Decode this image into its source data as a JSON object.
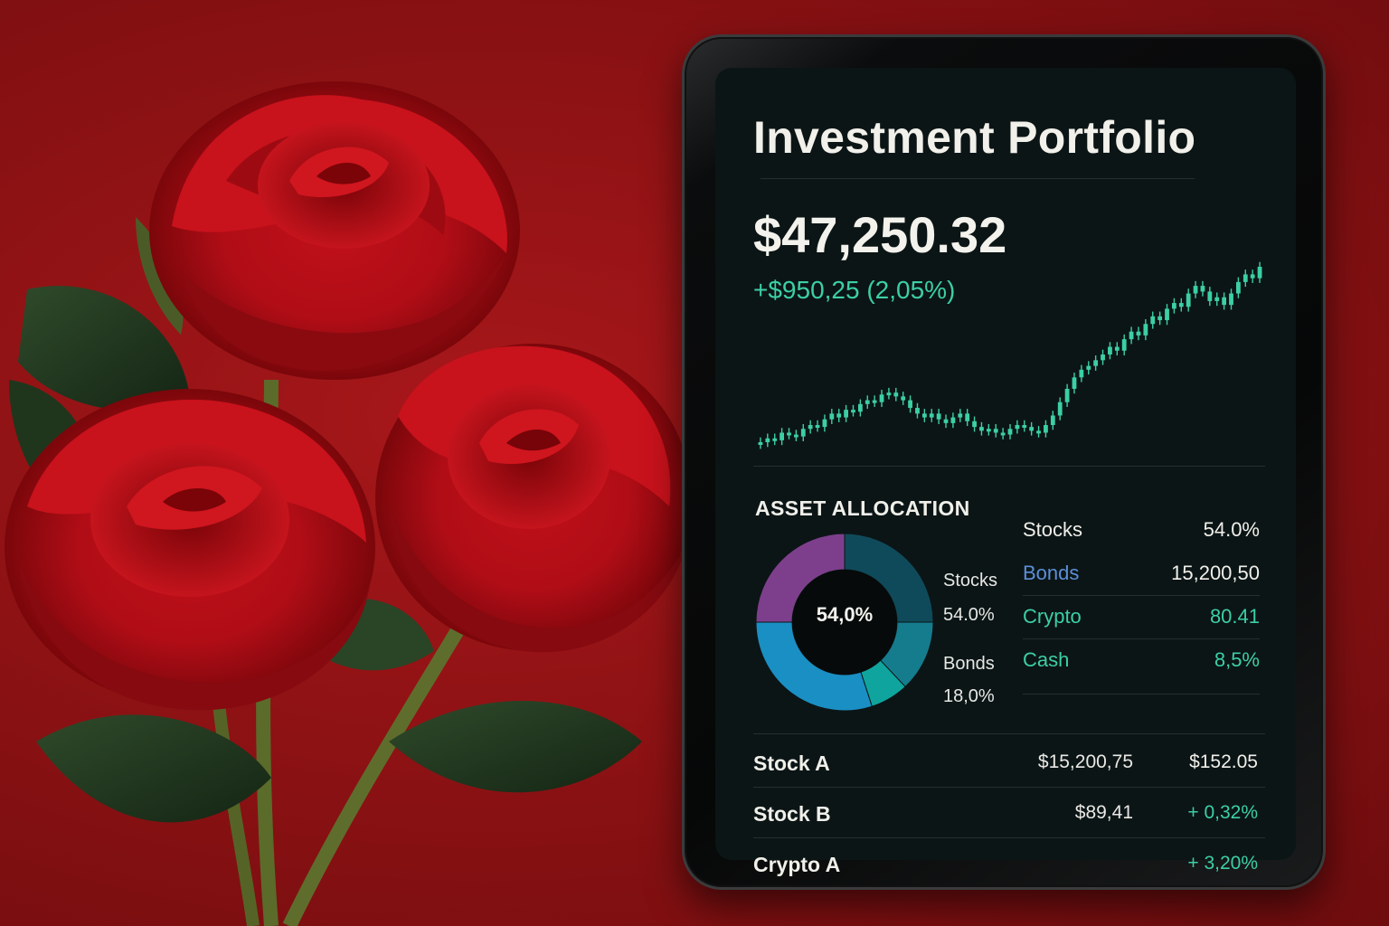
{
  "colors": {
    "background": "#9b1416",
    "screen": "#0c1516",
    "accent_green": "#3ccfa6",
    "accent_blue": "#5b8fd8",
    "text": "#f1f0ea"
  },
  "portfolio": {
    "title": "Investment Portfolio",
    "balance": "$47,250.32",
    "change": "+$950,25 (2,05%)"
  },
  "allocation": {
    "label": "ASSET ALLOCATION",
    "donut_center": "54,0%",
    "donut_labels": [
      {
        "name": "Stocks",
        "value": "54.0%"
      },
      {
        "name": "Bonds",
        "value": "18,0%"
      }
    ],
    "segments": [
      {
        "fraction": 0.25,
        "color": "#0f4a5a"
      },
      {
        "fraction": 0.13,
        "color": "#157c8e"
      },
      {
        "fraction": 0.07,
        "color": "#0fa59e"
      },
      {
        "fraction": 0.3,
        "color": "#1a8fc4"
      },
      {
        "fraction": 0.25,
        "color": "#7d3f8c"
      }
    ],
    "rows": [
      {
        "name": "Stocks",
        "value": "54.0%",
        "name_color": "#f0f0ea",
        "value_color": "#f0f0ea"
      },
      {
        "name": "Bonds",
        "value": "15,200,50",
        "name_color": "#5b8fd8",
        "value_color": "#f0f0ea"
      },
      {
        "name": "Crypto",
        "value": "80.41",
        "name_color": "#3ccfa6",
        "value_color": "#3ccfa6"
      },
      {
        "name": "Cash",
        "value": "8,5%",
        "name_color": "#3ccfa6",
        "value_color": "#3ccfa6"
      }
    ]
  },
  "holdings": [
    {
      "name": "Stock A",
      "c1": "$15,200,75",
      "c2": "$152.05",
      "c2_color": "#f0f0ea"
    },
    {
      "name": "Stock B",
      "c1": "$89,41",
      "c2": "+ 0,32%",
      "c2_color": "#3ccfa6"
    },
    {
      "name": "Crypto A",
      "c1": "",
      "c2": "+ 3,20%",
      "c2_color": "#3ccfa6"
    }
  ],
  "candle_series": [
    12,
    14,
    13,
    17,
    16,
    15,
    19,
    21,
    20,
    24,
    27,
    25,
    29,
    28,
    32,
    34,
    33,
    37,
    38,
    36,
    34,
    30,
    27,
    25,
    27,
    24,
    22,
    25,
    27,
    23,
    20,
    18,
    19,
    17,
    16,
    19,
    21,
    20,
    18,
    17,
    21,
    26,
    33,
    40,
    46,
    50,
    52,
    55,
    58,
    62,
    60,
    66,
    70,
    68,
    74,
    78,
    76,
    82,
    85,
    83,
    90,
    94,
    91,
    86,
    88,
    84,
    90,
    96,
    100,
    98,
    104
  ]
}
